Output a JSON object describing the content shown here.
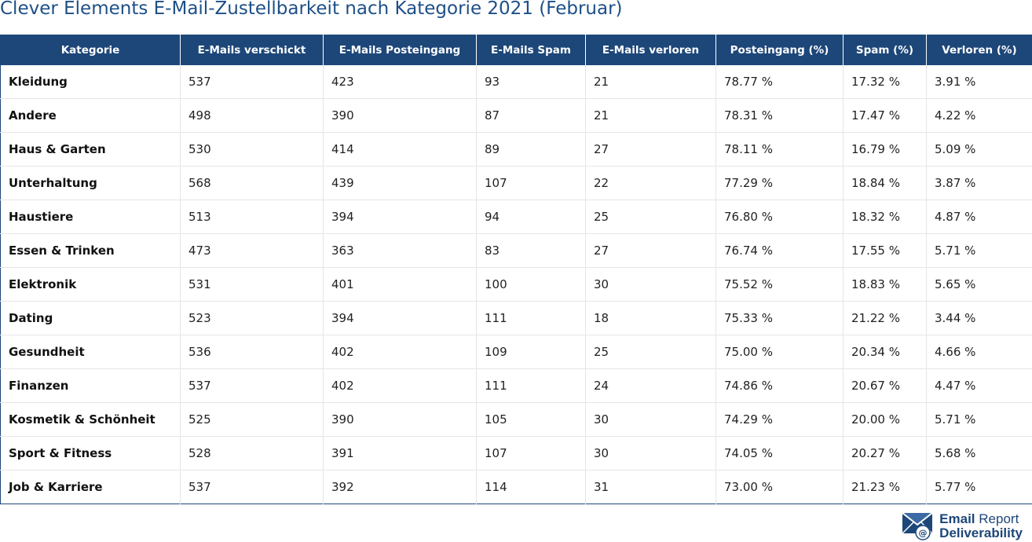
{
  "title": "Clever Elements E-Mail-Zustellbarkeit nach Kategorie 2021 (Februar)",
  "table": {
    "headers": [
      "Kategorie",
      "E-Mails verschickt",
      "E-Mails Posteingang",
      "E-Mails Spam",
      "E-Mails verloren",
      "Posteingang (%)",
      "Spam (%)",
      "Verloren (%)"
    ],
    "rows": [
      [
        "Kleidung",
        "537",
        "423",
        "93",
        "21",
        "78.77 %",
        "17.32 %",
        "3.91 %"
      ],
      [
        "Andere",
        "498",
        "390",
        "87",
        "21",
        "78.31 %",
        "17.47 %",
        "4.22 %"
      ],
      [
        "Haus & Garten",
        "530",
        "414",
        "89",
        "27",
        "78.11 %",
        "16.79 %",
        "5.09 %"
      ],
      [
        "Unterhaltung",
        "568",
        "439",
        "107",
        "22",
        "77.29 %",
        "18.84 %",
        "3.87 %"
      ],
      [
        "Haustiere",
        "513",
        "394",
        "94",
        "25",
        "76.80 %",
        "18.32 %",
        "4.87 %"
      ],
      [
        "Essen & Trinken",
        "473",
        "363",
        "83",
        "27",
        "76.74 %",
        "17.55 %",
        "5.71 %"
      ],
      [
        "Elektronik",
        "531",
        "401",
        "100",
        "30",
        "75.52 %",
        "18.83 %",
        "5.65 %"
      ],
      [
        "Dating",
        "523",
        "394",
        "111",
        "18",
        "75.33 %",
        "21.22 %",
        "3.44 %"
      ],
      [
        "Gesundheit",
        "536",
        "402",
        "109",
        "25",
        "75.00 %",
        "20.34 %",
        "4.66 %"
      ],
      [
        "Finanzen",
        "537",
        "402",
        "111",
        "24",
        "74.86 %",
        "20.67 %",
        "4.47 %"
      ],
      [
        "Kosmetik & Schönheit",
        "525",
        "390",
        "105",
        "30",
        "74.29 %",
        "20.00 %",
        "5.71 %"
      ],
      [
        "Sport & Fitness",
        "528",
        "391",
        "107",
        "30",
        "74.05 %",
        "20.27 %",
        "5.68 %"
      ],
      [
        "Job & Karriere",
        "537",
        "392",
        "114",
        "31",
        "73.00 %",
        "21.23 %",
        "5.77 %"
      ]
    ]
  },
  "logo": {
    "icon": "envelope-at-icon",
    "word1": "Email",
    "word2": "Report",
    "word3": "Deliverability"
  },
  "colors": {
    "title": "#1d4f87",
    "header_bg": "#1d4779",
    "header_text": "#ffffff"
  }
}
